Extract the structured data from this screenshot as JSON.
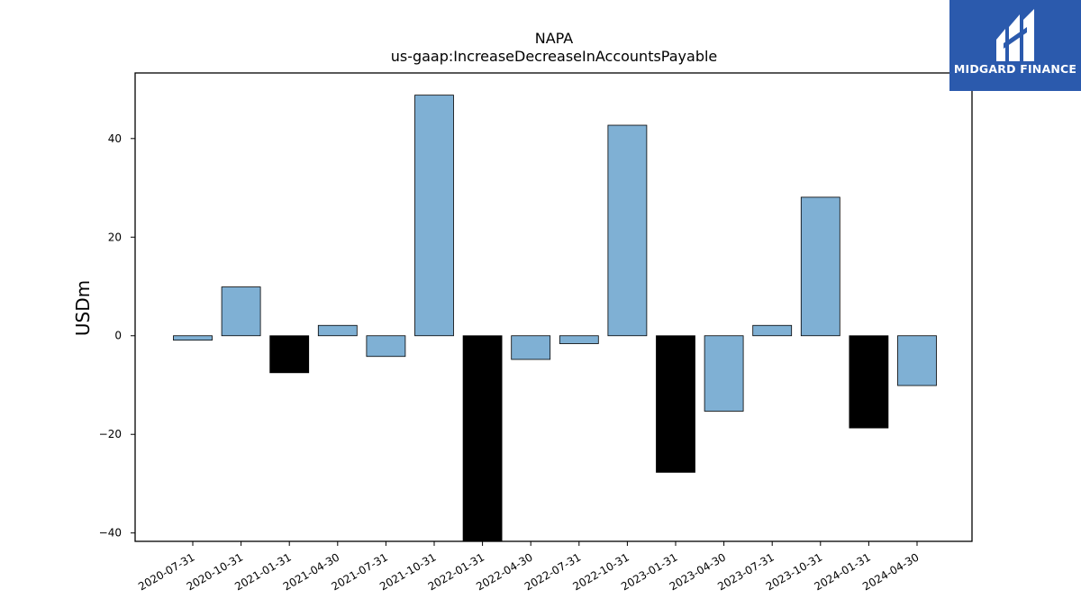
{
  "chart_data": {
    "type": "bar",
    "title": "NAPA",
    "subtitle": "us-gaap:IncreaseDecreaseInAccountsPayable",
    "xlabel": "",
    "ylabel": "USDm",
    "categories": [
      "2020-07-31",
      "2020-10-31",
      "2021-01-31",
      "2021-04-30",
      "2021-07-31",
      "2021-10-31",
      "2022-01-31",
      "2022-04-30",
      "2022-07-31",
      "2022-10-31",
      "2023-01-31",
      "2023-04-30",
      "2023-07-31",
      "2023-10-31",
      "2024-01-31",
      "2024-04-30"
    ],
    "values": [
      -0.9,
      9.9,
      -7.5,
      2.1,
      -4.2,
      48.8,
      -42.0,
      -4.8,
      -1.6,
      42.7,
      -27.7,
      -15.3,
      2.1,
      28.1,
      -18.7,
      -10.1
    ],
    "highlight": [
      false,
      false,
      true,
      false,
      false,
      false,
      true,
      false,
      false,
      false,
      true,
      false,
      false,
      false,
      true,
      false
    ],
    "ylim": [
      -41.7,
      53.3
    ],
    "yticks": [
      -40,
      -20,
      0,
      20,
      40
    ],
    "ytick_labels": [
      "−40",
      "−20",
      "0",
      "20",
      "40"
    ],
    "grid": false,
    "colors": {
      "default": "#7fb0d4",
      "highlight": "#000000",
      "edge": "#000000"
    }
  },
  "logo": {
    "text": "MIDGARD FINANCE",
    "background": "#2b5aad",
    "icon": "midgard-logo-icon"
  }
}
